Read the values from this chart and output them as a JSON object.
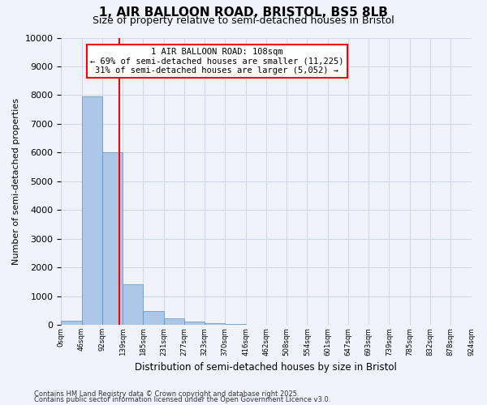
{
  "title_line1": "1, AIR BALLOON ROAD, BRISTOL, BS5 8LB",
  "title_line2": "Size of property relative to semi-detached houses in Bristol",
  "xlabel": "Distribution of semi-detached houses by size in Bristol",
  "ylabel": "Number of semi-detached properties",
  "bar_values": [
    150,
    7950,
    6020,
    1420,
    480,
    220,
    120,
    50,
    30,
    10,
    5,
    3,
    2,
    1,
    1,
    1,
    1,
    1,
    1,
    1
  ],
  "bin_labels": [
    "0sqm",
    "46sqm",
    "92sqm",
    "139sqm",
    "185sqm",
    "231sqm",
    "277sqm",
    "323sqm",
    "370sqm",
    "416sqm",
    "462sqm",
    "508sqm",
    "554sqm",
    "601sqm",
    "647sqm",
    "693sqm",
    "739sqm",
    "785sqm",
    "832sqm",
    "878sqm",
    "924sqm"
  ],
  "bar_color": "#aec6e8",
  "bar_edge_color": "#5a8fc0",
  "grid_color": "#d0d8e8",
  "vline_x": 2.35,
  "vline_color": "red",
  "annotation_title": "1 AIR BALLOON ROAD: 108sqm",
  "annotation_line1": "← 69% of semi-detached houses are smaller (11,225)",
  "annotation_line2": "31% of semi-detached houses are larger (5,052) →",
  "annotation_box_color": "white",
  "annotation_box_edge": "red",
  "ylim": [
    0,
    10000
  ],
  "yticks": [
    0,
    1000,
    2000,
    3000,
    4000,
    5000,
    6000,
    7000,
    8000,
    9000,
    10000
  ],
  "footnote1": "Contains HM Land Registry data © Crown copyright and database right 2025.",
  "footnote2": "Contains public sector information licensed under the Open Government Licence v3.0.",
  "bg_color": "#f0f4fa"
}
